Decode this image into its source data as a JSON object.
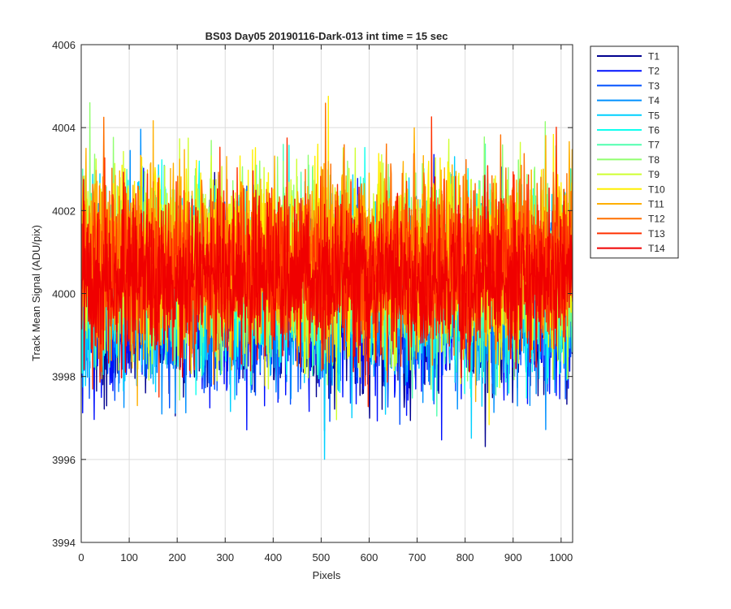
{
  "chart_data": {
    "type": "line",
    "title": "BS03 Day05 20190116-Dark-013 int time = 15 sec",
    "xlabel": "Pixels",
    "ylabel": "Track Mean Signal (ADU/pix)",
    "xlim": [
      0,
      1024
    ],
    "ylim": [
      3994,
      4006
    ],
    "x_ticks": [
      0,
      100,
      200,
      300,
      400,
      500,
      600,
      700,
      800,
      900,
      1000
    ],
    "y_ticks": [
      3994,
      3996,
      3998,
      4000,
      4002,
      4004,
      4006
    ],
    "grid": true,
    "legend_position": "outside-top-right",
    "x_range": [
      1,
      1024
    ],
    "noise_seed": 13,
    "series": [
      {
        "name": "T1",
        "color": "#00008f",
        "mean": 3999.6,
        "noise": 1.0
      },
      {
        "name": "T2",
        "color": "#0010ff",
        "mean": 3999.6,
        "noise": 1.0
      },
      {
        "name": "T3",
        "color": "#0050ff",
        "mean": 3999.7,
        "noise": 1.0
      },
      {
        "name": "T4",
        "color": "#0090ff",
        "mean": 3999.9,
        "noise": 1.0
      },
      {
        "name": "T5",
        "color": "#00d0ff",
        "mean": 4000.1,
        "noise": 1.05
      },
      {
        "name": "T6",
        "color": "#10ffef",
        "mean": 4000.3,
        "noise": 1.05
      },
      {
        "name": "T7",
        "color": "#50ffaf",
        "mean": 4000.5,
        "noise": 1.05
      },
      {
        "name": "T8",
        "color": "#90ff6f",
        "mean": 4000.7,
        "noise": 1.05
      },
      {
        "name": "T9",
        "color": "#cfff30",
        "mean": 4000.8,
        "noise": 1.05
      },
      {
        "name": "T10",
        "color": "#ffef00",
        "mean": 4000.8,
        "noise": 1.05
      },
      {
        "name": "T11",
        "color": "#ffaf00",
        "mean": 4000.9,
        "noise": 1.05
      },
      {
        "name": "T12",
        "color": "#ff7000",
        "mean": 4000.8,
        "noise": 1.0
      },
      {
        "name": "T13",
        "color": "#ff3000",
        "mean": 4000.6,
        "noise": 1.0
      },
      {
        "name": "T14",
        "color": "#f00000",
        "mean": 4000.3,
        "noise": 0.9
      }
    ]
  }
}
